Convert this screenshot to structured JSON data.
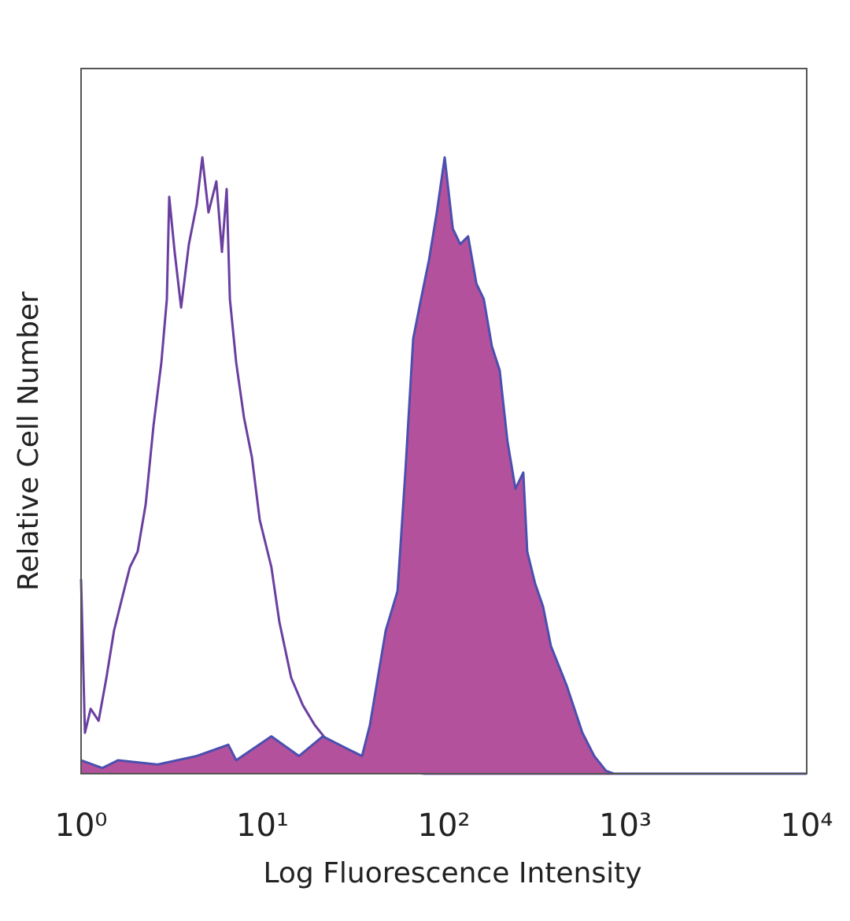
{
  "chart_data": {
    "type": "area",
    "xlabel": "Log Fluorescence Intensity",
    "ylabel": "Relative Cell Number",
    "xscale": "log",
    "xlim": [
      1,
      10000
    ],
    "xticks": [
      {
        "value": 1,
        "label": "10⁰"
      },
      {
        "value": 10,
        "label": "10¹"
      },
      {
        "value": 100,
        "label": "10²"
      },
      {
        "value": 1000,
        "label": "10³"
      },
      {
        "value": 10000,
        "label": "10⁴"
      }
    ],
    "ylim": [
      0,
      100
    ],
    "series": [
      {
        "color": "#6a3fa0",
        "x": [
          1.0,
          1.05,
          1.13,
          1.25,
          1.38,
          1.52,
          1.68,
          1.86,
          2.05,
          2.27,
          2.51,
          2.77,
          2.97,
          3.06,
          3.28,
          3.56,
          3.93,
          4.34,
          4.66,
          5.04,
          5.57,
          5.98,
          6.35,
          6.61,
          7.16,
          7.91,
          8.74,
          9.66,
          11.2,
          12.4,
          14.4,
          16.7,
          19.4,
          23.7,
          29.0,
          39.1,
          52.7,
          78.6,
          143,
          10000
        ],
        "values": [
          27.6,
          5.8,
          9.2,
          7.5,
          13.6,
          20.3,
          24.8,
          29.3,
          31.5,
          38.2,
          49.4,
          58.3,
          67.3,
          81.8,
          74.0,
          66.1,
          75.1,
          80.7,
          87.4,
          79.6,
          84.0,
          74.0,
          82.9,
          67.3,
          58.3,
          50.5,
          44.9,
          36.0,
          29.3,
          21.5,
          13.6,
          9.7,
          6.9,
          4.1,
          2.5,
          1.3,
          0.4,
          0,
          0,
          0
        ]
      },
      {
        "color": "#4b4fae",
        "fill": "#b4519c",
        "x": [
          1.0,
          1.31,
          1.6,
          2.64,
          4.34,
          6.48,
          7.16,
          11.2,
          15.9,
          21.5,
          29.0,
          35.4,
          39.1,
          47.8,
          55.5,
          61.3,
          67.7,
          74.8,
          82.7,
          91.4,
          101,
          112,
          123,
          136,
          151,
          166,
          184,
          203,
          224,
          248,
          274,
          288,
          318,
          352,
          389,
          475,
          580,
          674,
          783,
          865,
          10000
        ],
        "values": [
          1.9,
          0.8,
          1.9,
          1.3,
          2.5,
          4.1,
          1.9,
          5.3,
          2.5,
          5.3,
          3.6,
          2.5,
          6.9,
          20.3,
          25.9,
          42.7,
          61.7,
          67.3,
          72.8,
          79.6,
          87.4,
          77.3,
          75.1,
          76.2,
          69.5,
          67.3,
          60.6,
          57.2,
          47.2,
          40.4,
          42.7,
          31.5,
          27.0,
          23.7,
          18.1,
          12.5,
          5.8,
          2.5,
          0.4,
          0,
          0
        ]
      }
    ]
  }
}
